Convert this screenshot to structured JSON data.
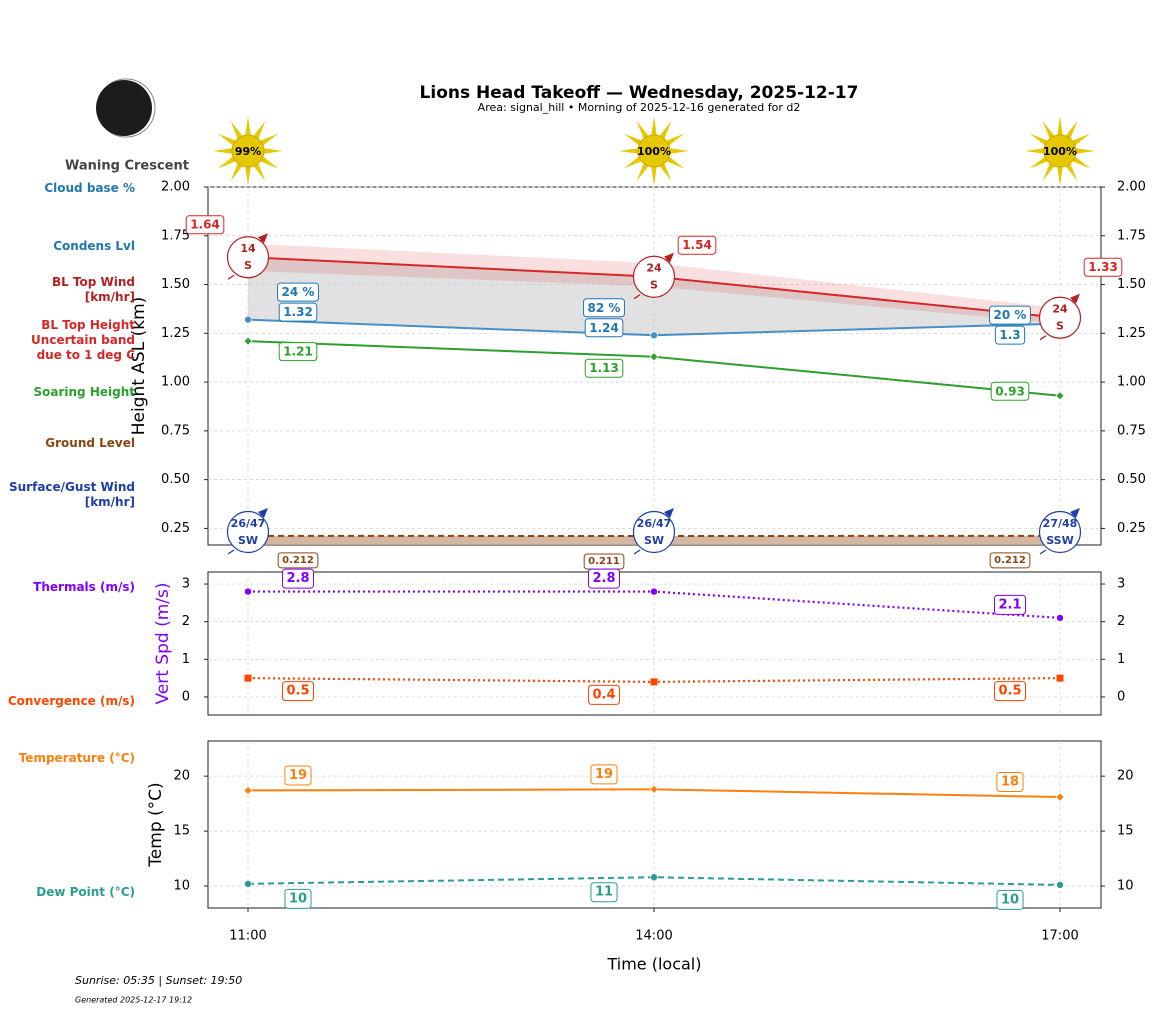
{
  "header": {
    "title": "Lions Head Takeoff — Wednesday, 2025-12-17",
    "subtitle": "Area: signal_hill • Morning of 2025-12-16 generated for d2",
    "moon_phase": "Waning Crescent"
  },
  "sunshine": {
    "values": [
      99,
      100,
      100
    ],
    "value_labels": [
      "99%",
      "100%",
      "100%"
    ],
    "color": "#e6c800"
  },
  "chart_data": [
    {
      "type": "line",
      "y_label": "Height ASL (km)",
      "ylim": [
        0.165,
        2.0
      ],
      "yticks": [
        0.25,
        {
          "value": 0.5,
          "label": "0.50"
        },
        0.75,
        {
          "value": 1,
          "label": "1.00"
        },
        1.25,
        {
          "value": 1.5,
          "label": "1.50"
        },
        1.75,
        {
          "value": 2,
          "label": "2.00"
        }
      ],
      "grid": true,
      "cloud_base": {
        "name": "Cloud base %",
        "color": "#1f77b4",
        "values": [
          24,
          82,
          20
        ],
        "value_labels": [
          "24 %",
          "82 %",
          "20 %"
        ]
      },
      "series": [
        {
          "name": "Condens Lvl",
          "color": "#4a8fc4",
          "label_color": "#1f77b4",
          "values": [
            1.32,
            1.24,
            1.3
          ],
          "marker": "circle",
          "line_style": "solid"
        },
        {
          "name": "BL Top Height Uncertain band due to 1 deg C",
          "color": "#d62728",
          "values": [
            1.64,
            1.54,
            1.33
          ],
          "band_upper": [
            1.71,
            1.61,
            1.38
          ],
          "band_lower": [
            1.57,
            1.49,
            1.3
          ],
          "marker": "none",
          "line_style": "solid"
        },
        {
          "name": "Soaring Height",
          "color": "#2ca02c",
          "values": [
            1.21,
            1.13,
            0.93
          ],
          "marker": "diamond",
          "line_style": "solid"
        },
        {
          "name": "Ground Level",
          "color": "#8b4513",
          "values": [
            0.212,
            0.211,
            0.212
          ],
          "marker": "none",
          "line_style": "dashed"
        }
      ],
      "bl_top_wind": {
        "name": "BL Top Wind [km/hr]",
        "color": "#b22222",
        "speeds": [
          14,
          24,
          24
        ],
        "directions": [
          "S",
          "S",
          "S"
        ]
      },
      "surface_wind": {
        "name": "Surface/Gust Wind [km/hr]",
        "color": "#1f3fa8",
        "speeds": [
          26,
          26,
          27
        ],
        "gusts": [
          47,
          47,
          48
        ],
        "value_labels": [
          "26/47",
          "26/47",
          "27/48"
        ],
        "directions": [
          "SW",
          "SW",
          "SSW"
        ]
      }
    },
    {
      "type": "line",
      "y_label": "Vert Spd (m/s)",
      "y_label_color": "#7f00ff",
      "ylim": [
        -0.48,
        3.32
      ],
      "yticks": [
        0,
        1,
        2,
        3
      ],
      "grid": true,
      "series": [
        {
          "name": "Thermals (m/s)",
          "color": "#7f00ff",
          "values": [
            2.8,
            2.8,
            2.1
          ],
          "marker": "circle",
          "line_style": "dotted"
        },
        {
          "name": "Convergence (m/s)",
          "color": "#ff4500",
          "values": [
            0.5,
            0.4,
            0.5
          ],
          "marker": "square",
          "line_style": "dotted"
        }
      ]
    },
    {
      "type": "line",
      "y_label": "Temp (°C)",
      "ylim": [
        8,
        23.2
      ],
      "yticks": [
        10,
        15,
        20
      ],
      "grid": true,
      "x_label": "Time (local)",
      "categories": [
        "11:00",
        "14:00",
        "17:00"
      ],
      "series": [
        {
          "name": "Temperature (°C)",
          "color": "#ff7f0e",
          "values": [
            18.7,
            18.8,
            18.1
          ],
          "value_labels": [
            "19",
            "19",
            "18"
          ],
          "marker": "diamond",
          "line_style": "solid"
        },
        {
          "name": "Dew Point (°C)",
          "color": "#2a9d8f",
          "values": [
            10.2,
            10.8,
            10.1
          ],
          "value_labels": [
            "10",
            "11",
            "10"
          ],
          "marker": "circle",
          "line_style": "dashed"
        }
      ]
    }
  ],
  "footer": {
    "sun_times": "Sunrise: 05:35 | Sunset: 19:50",
    "generated": "Generated 2025-12-17 19:12"
  }
}
